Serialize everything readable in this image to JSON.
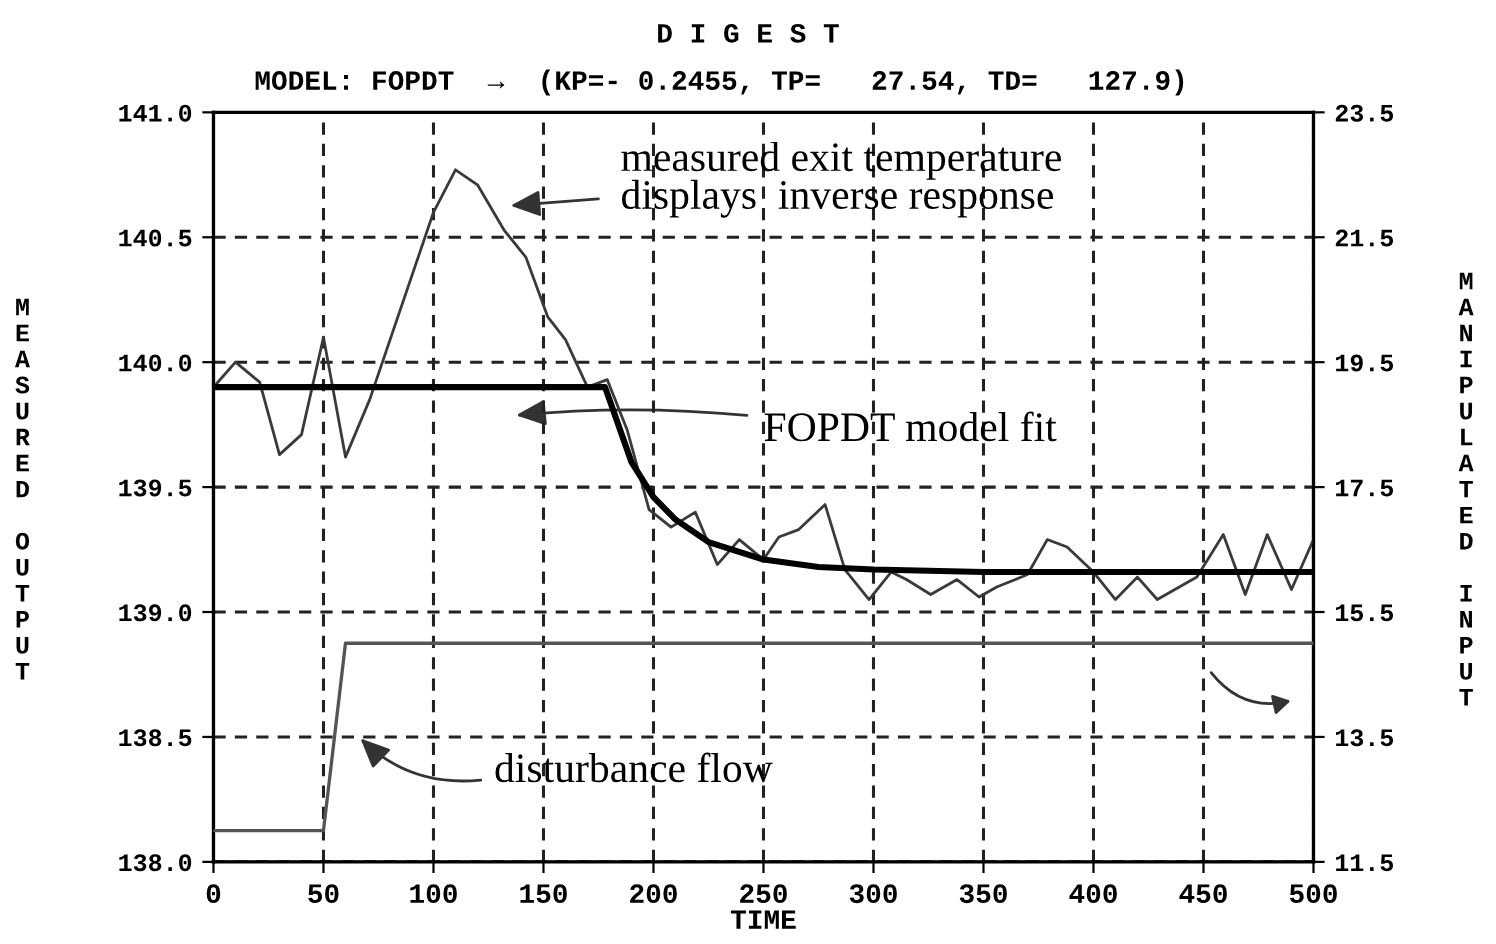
{
  "chart_data": {
    "type": "line",
    "title": "D I G E S T",
    "subtitle": "MODEL: FOPDT  →  (KP=- 0.2455, TP=   27.54, TD=   127.9)",
    "xlabel": "TIME",
    "ylabel": "MEASURED OUTPUT",
    "y2label": "MANIPULATED INPUT",
    "xlim": [
      0,
      500
    ],
    "xticks": [
      0,
      50,
      100,
      150,
      200,
      250,
      300,
      350,
      400,
      450,
      500
    ],
    "ylim": [
      138.0,
      141.0
    ],
    "yticks": [
      {
        "value": 138,
        "label": "138.0"
      },
      138.5,
      {
        "value": 139,
        "label": "139.0"
      },
      139.5,
      {
        "value": 140,
        "label": "140.0"
      },
      140.5,
      {
        "value": 141,
        "label": "141.0"
      }
    ],
    "y2lim": [
      11.5,
      23.5
    ],
    "y2ticks": [
      11.5,
      13.5,
      15.5,
      17.5,
      19.5,
      21.5,
      23.5
    ],
    "grid": true,
    "marker": "none",
    "line_style": "solid",
    "series": [
      {
        "color": "#3a3a3a",
        "x": [
          0,
          10,
          21,
          30,
          40,
          50,
          60,
          71,
          100,
          110,
          120,
          132,
          142,
          152,
          160,
          170,
          179,
          188,
          198,
          208,
          219,
          229,
          239,
          250,
          257,
          266,
          278,
          287,
          298,
          308,
          315,
          326,
          338,
          348,
          356,
          370,
          379,
          388,
          400,
          410,
          420,
          429,
          447,
          459,
          469,
          479,
          490,
          500
        ],
        "values": [
          139.9,
          140.0,
          139.92,
          139.63,
          139.71,
          140.1,
          139.62,
          139.85,
          140.6,
          140.77,
          140.71,
          140.53,
          140.42,
          140.18,
          140.09,
          139.9,
          139.93,
          139.73,
          139.41,
          139.34,
          139.4,
          139.19,
          139.29,
          139.21,
          139.3,
          139.33,
          139.43,
          139.17,
          139.05,
          139.16,
          139.13,
          139.07,
          139.13,
          139.06,
          139.1,
          139.15,
          139.29,
          139.26,
          139.16,
          139.05,
          139.14,
          139.05,
          139.14,
          139.31,
          139.07,
          139.31,
          139.09,
          139.29
        ]
      },
      {
        "color": "#000000",
        "x": [
          0,
          178,
          190,
          200,
          210,
          225,
          250,
          275,
          300,
          350,
          500
        ],
        "values": [
          139.9,
          139.9,
          139.6,
          139.46,
          139.37,
          139.28,
          139.21,
          139.18,
          139.17,
          139.16,
          139.16
        ]
      },
      {
        "color": "#555555",
        "axis": "y2",
        "x": [
          0,
          50,
          60,
          500
        ],
        "values": [
          12.0,
          12.0,
          15.0,
          15.0
        ]
      }
    ],
    "annotations": [
      "measured exit temperature\ndisplays  inverse response",
      "FOPDT model fit",
      "disturbance flow"
    ]
  }
}
